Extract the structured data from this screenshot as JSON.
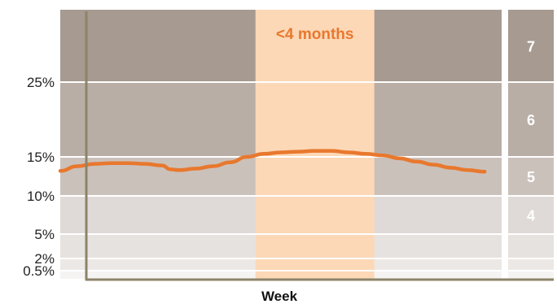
{
  "chart_data": {
    "type": "line",
    "title": "",
    "xlabel": "Week",
    "ylabel": "",
    "ylim": [
      0,
      33
    ],
    "yticks": [
      {
        "value": 0.5,
        "label": "0.5%"
      },
      {
        "value": 2,
        "label": "2%"
      },
      {
        "value": 5,
        "label": "5%"
      },
      {
        "value": 10,
        "label": "10%"
      },
      {
        "value": 15,
        "label": "15%"
      },
      {
        "value": 25,
        "label": "25%"
      }
    ],
    "xlim": [
      0,
      52
    ],
    "bands": [
      {
        "label": "",
        "from": 0,
        "to": 0.5,
        "color": "#f6f4f3"
      },
      {
        "label": "",
        "from": 0.5,
        "to": 2,
        "color": "#ece8e5"
      },
      {
        "label": "",
        "from": 2,
        "to": 5,
        "color": "#e6e2df"
      },
      {
        "label": "4",
        "from": 5,
        "to": 10,
        "color": "#dfdad7"
      },
      {
        "label": "5",
        "from": 10,
        "to": 15,
        "color": "#cbc1bb"
      },
      {
        "label": "6",
        "from": 15,
        "to": 25,
        "color": "#b9aea6"
      },
      {
        "label": "7",
        "from": 25,
        "to": 33,
        "color": "#a69a91"
      }
    ],
    "highlight": {
      "label": "<4 months",
      "x_from": 23,
      "x_to": 37,
      "color": "#fcd8b7",
      "text_color": "#e8782e"
    },
    "series": [
      {
        "color": "#e8782e",
        "x": [
          0,
          2,
          4,
          6,
          8,
          10,
          12,
          13,
          14,
          16,
          18,
          20,
          22,
          24,
          26,
          28,
          30,
          32,
          34,
          36,
          38,
          40,
          42,
          44,
          46,
          48,
          50
        ],
        "y": [
          13.2,
          13.8,
          14.1,
          14.2,
          14.2,
          14.1,
          13.9,
          13.4,
          13.3,
          13.5,
          13.8,
          14.3,
          15.0,
          15.4,
          15.6,
          15.7,
          15.8,
          15.8,
          15.6,
          15.4,
          15.2,
          14.8,
          14.4,
          14.0,
          13.6,
          13.3,
          13.1
        ]
      }
    ]
  }
}
